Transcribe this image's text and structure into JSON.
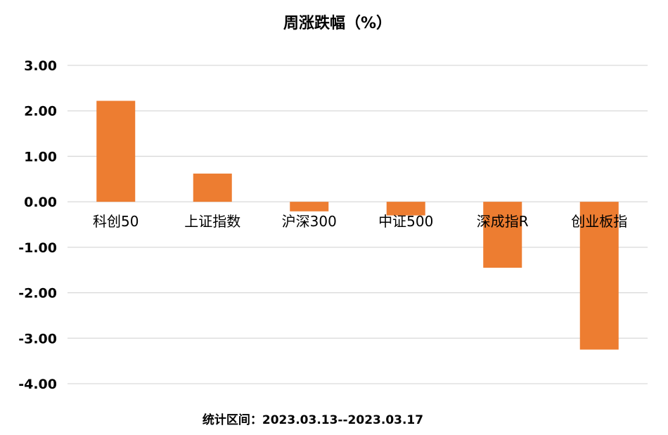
{
  "chart_data": {
    "type": "bar",
    "title": "周涨跌幅（%）",
    "categories": [
      "科创50",
      "上证指数",
      "沪深300",
      "中证500",
      "深成指R",
      "创业板指"
    ],
    "values": [
      2.22,
      0.62,
      -0.21,
      -0.3,
      -1.45,
      -3.25
    ],
    "ylim": [
      -4,
      3
    ],
    "yticks": [
      "3.00",
      "2.00",
      "1.00",
      "0.00",
      "-1.00",
      "-2.00",
      "-3.00",
      "-4.00"
    ],
    "xlabel": "",
    "ylabel": "",
    "grid": true,
    "legend": "none",
    "bar_color": "#ED7D31",
    "note": "统计区间：2023.03.13--2023.03.17"
  }
}
